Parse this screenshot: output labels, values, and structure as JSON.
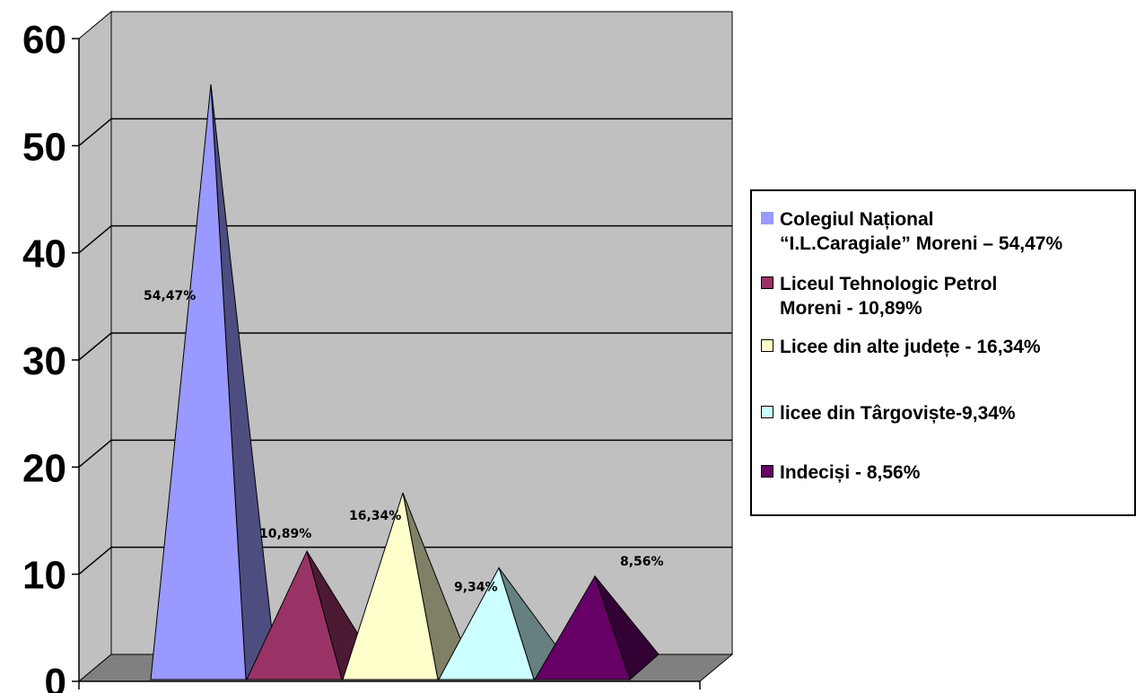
{
  "chart_data": {
    "type": "bar",
    "style": "3d-pyramid",
    "ylim": [
      0,
      60
    ],
    "yticks": [
      "0",
      "10",
      "20",
      "30",
      "40",
      "50",
      "60"
    ],
    "grid": true,
    "legend_position": "right",
    "series": [
      {
        "legend_label": "Colegiul Național\n“I.L.Caragiale” Moreni – 54,47%",
        "value": 54.47,
        "data_label": "54,47%",
        "color": "#9999FF",
        "shade": "#4D4D80",
        "swatch_border": false
      },
      {
        "legend_label": " Liceul Tehnologic  Petrol\nMoreni - 10,89%",
        "value": 10.89,
        "data_label": "10,89%",
        "color": "#993366",
        "shade": "#4D1A33",
        "swatch_border": true
      },
      {
        "legend_label": "Licee din alte județe - 16,34%",
        "value": 16.34,
        "data_label": "16,34%",
        "color": "#FFFFCC",
        "shade": "#808066",
        "swatch_border": true
      },
      {
        "legend_label": "licee din Târgoviște-9,34%",
        "value": 9.34,
        "data_label": "9,34%",
        "color": "#CCFFFF",
        "shade": "#668080",
        "swatch_border": true
      },
      {
        "legend_label": "Indeciși - 8,56%",
        "value": 8.56,
        "data_label": "8,56%",
        "color": "#660066",
        "shade": "#330033",
        "swatch_border": true
      }
    ]
  }
}
